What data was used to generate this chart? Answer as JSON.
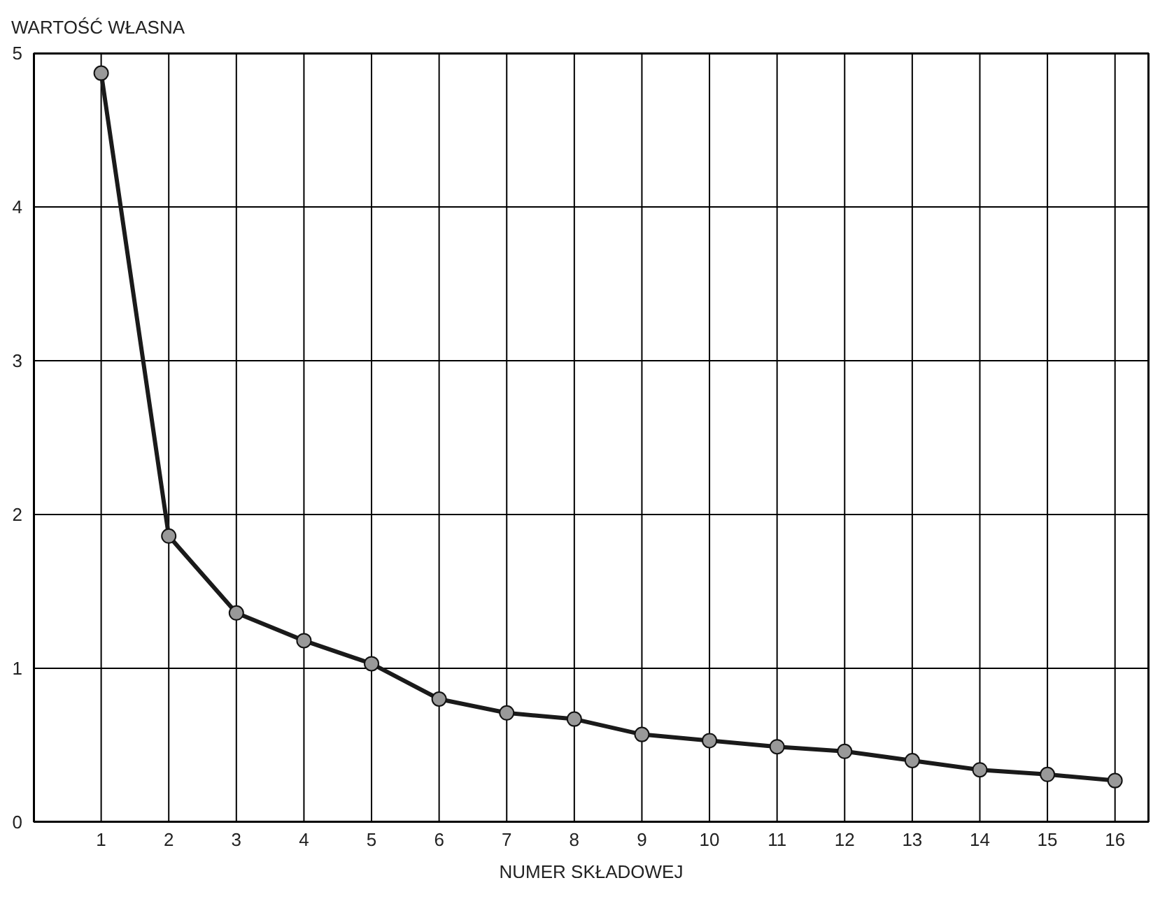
{
  "chart_data": {
    "type": "line",
    "xlabel": "NUMER SKŁADOWEJ",
    "ylabel": "WARTOŚĆ WŁASNA",
    "x": [
      1,
      2,
      3,
      4,
      5,
      6,
      7,
      8,
      9,
      10,
      11,
      12,
      13,
      14,
      15,
      16
    ],
    "series": [
      {
        "color": "#1a1a1a",
        "values": [
          4.87,
          1.86,
          1.36,
          1.18,
          1.03,
          0.8,
          0.71,
          0.67,
          0.57,
          0.53,
          0.49,
          0.46,
          0.4,
          0.34,
          0.31,
          0.27
        ]
      }
    ],
    "xlim": [
      0,
      16.5
    ],
    "xticks": [
      1,
      2,
      3,
      4,
      5,
      6,
      7,
      8,
      9,
      10,
      11,
      12,
      13,
      14,
      15,
      16
    ],
    "ylim": [
      0,
      5
    ],
    "yticks": [
      0,
      1,
      2,
      3,
      4,
      5
    ],
    "grid": true,
    "marker": "circle",
    "line_style": "solid"
  }
}
